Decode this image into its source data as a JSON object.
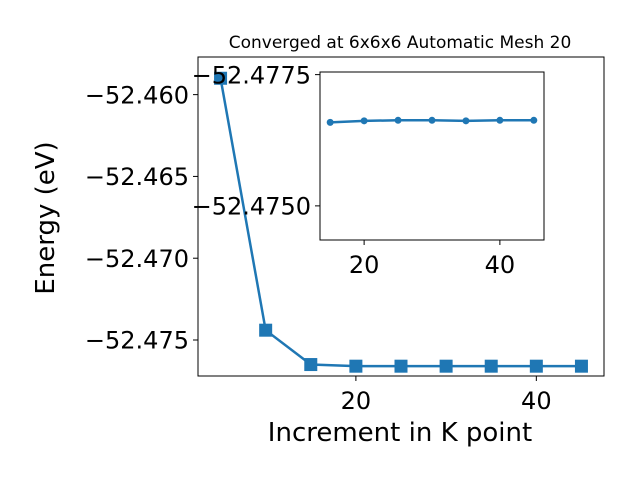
{
  "chart_data": [
    {
      "type": "line",
      "title": "Converged at 6x6x6 Automatic Mesh 20",
      "xlabel": "Increment in K point",
      "ylabel": "Energy (eV)",
      "xlim": [
        2.5,
        47.5
      ],
      "ylim": [
        -52.4772,
        -52.4577
      ],
      "x_ticks": [
        20,
        40
      ],
      "y_ticks": [
        -52.46,
        -52.465,
        -52.47,
        -52.475
      ],
      "y_tick_labels": [
        "−52.460",
        "−52.465",
        "−52.470",
        "−52.475"
      ],
      "x_tick_labels": [
        "20",
        "40"
      ],
      "grid": false,
      "marker": "square",
      "color": "#1f77b4",
      "x": [
        5,
        10,
        15,
        20,
        25,
        30,
        35,
        40,
        45
      ],
      "series": [
        {
          "values": [
            -52.459,
            -52.4744,
            -52.4765,
            -52.4766,
            -52.4766,
            -52.4766,
            -52.4766,
            -52.4766,
            -52.4766
          ]
        }
      ]
    },
    {
      "type": "line",
      "title": "",
      "xlabel": "",
      "ylabel": "",
      "xlim": [
        13.5,
        46.5
      ],
      "ylim": [
        -52.47435,
        -52.47755
      ],
      "y_inverted": true,
      "x_ticks": [
        20,
        40
      ],
      "x_tick_labels": [
        "20",
        "40"
      ],
      "y_ticks": [
        -52.4775,
        -52.475
      ],
      "y_tick_labels": [
        "−52.4775",
        "−52.4750"
      ],
      "grid": false,
      "marker": "circle",
      "color": "#1f77b4",
      "x": [
        15,
        20,
        25,
        30,
        35,
        40,
        45
      ],
      "series": [
        {
          "values": [
            -52.47659,
            -52.47662,
            -52.47663,
            -52.47663,
            -52.47662,
            -52.47663,
            -52.47663
          ]
        }
      ]
    }
  ]
}
